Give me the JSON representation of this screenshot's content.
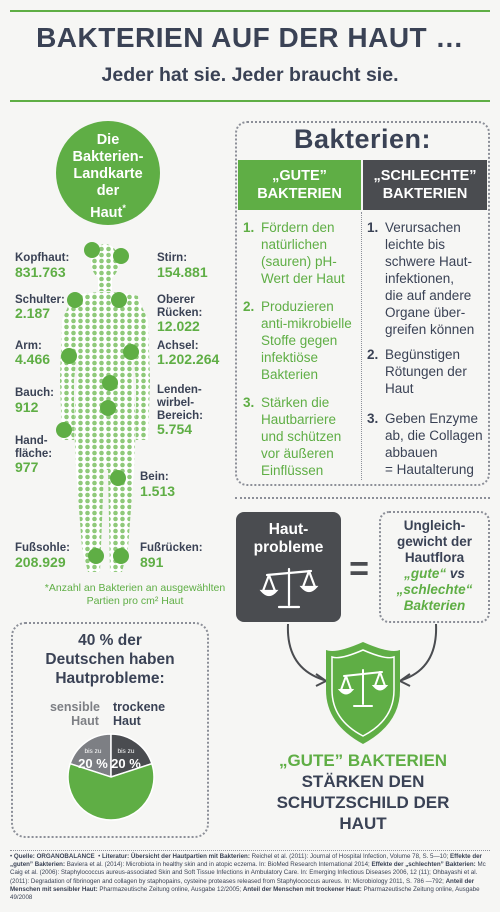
{
  "header": {
    "title": "BAKTERIEN AUF DER HAUT …",
    "subtitle": "Jeder hat sie. Jeder braucht sie."
  },
  "map": {
    "circle_lines": [
      "Die",
      "Bakterien-",
      "Landkarte",
      "der",
      "Haut"
    ],
    "asterisk": "*",
    "footnote": "*Anzahl an Bakterien an ausgewählten Partien pro cm² Haut",
    "left": [
      {
        "label": "Kopfhaut:",
        "value": "831.763"
      },
      {
        "label": "Schulter:",
        "value": "2.187"
      },
      {
        "label": "Arm:",
        "value": "4.466"
      },
      {
        "label": "Bauch:",
        "value": "912"
      },
      {
        "label": "Hand-\nfläche:",
        "value": "977"
      },
      {
        "label": "Fußsohle:",
        "value": "208.929"
      }
    ],
    "right": [
      {
        "label": "Stirn:",
        "value": "154.881"
      },
      {
        "label": "Oberer\nRücken:",
        "value": "12.022"
      },
      {
        "label": "Achsel:",
        "value": "1.202.264"
      },
      {
        "label": "Lenden-\nwirbel-\nBereich:",
        "value": "5.754"
      },
      {
        "label": "Bein:",
        "value": "1.513"
      },
      {
        "label": "Fußrücken:",
        "value": "891"
      }
    ]
  },
  "bacteria": {
    "title": "Bakterien:",
    "good_header": [
      "„GUTE”",
      "BAKTERIEN"
    ],
    "bad_header": [
      "„SCHLECHTE”",
      "BAKTERIEN"
    ],
    "good": [
      {
        "num": "1.",
        "lines": [
          "Fördern den",
          "natürlichen",
          "(sauren) pH-",
          "Wert der Haut"
        ]
      },
      {
        "num": "2.",
        "lines": [
          "Produzieren",
          "anti-mikrobielle",
          "Stoffe gegen",
          "infektiöse",
          "Bakterien"
        ]
      },
      {
        "num": "3.",
        "lines": [
          "Stärken die",
          "Hautbarriere",
          "und schützen",
          "vor äußeren",
          "Einflüssen"
        ]
      }
    ],
    "bad": [
      {
        "num": "1.",
        "lines": [
          "Verursachen",
          "leichte bis",
          "schwere Haut-",
          "infektionen,",
          "die auf andere",
          "Organe über-",
          "greifen können"
        ]
      },
      {
        "num": "2.",
        "lines": [
          "Begünstigen",
          "Rötungen der",
          "Haut"
        ]
      },
      {
        "num": "3.",
        "lines": [
          "Geben Enzyme",
          "ab, die Collagen",
          "abbauen",
          "= Hautalterung"
        ]
      }
    ]
  },
  "problem": {
    "box_lines": [
      "Haut-",
      "probleme"
    ],
    "equals": "=",
    "imbalance_lines": [
      "Ungleich-",
      "gewicht der",
      "Hautflora"
    ],
    "imbalance_good": "„gute“",
    "imbalance_vs": "vs",
    "imbalance_bad1": "„schlechte“",
    "imbalance_bad2": "Bakterien"
  },
  "stat": {
    "lines": [
      "40 % der",
      "Deutschen haben",
      "Hautprobleme:"
    ],
    "sensible": [
      "sensible",
      "Haut"
    ],
    "trocken": [
      "trockene",
      "Haut"
    ],
    "slice_left_small": "bis zu",
    "slice_left_big": "20 %",
    "slice_right_small": "bis zu",
    "slice_right_big": "20 %",
    "chart_data": {
      "type": "pie",
      "categories": [
        "sensible Haut",
        "trockene Haut",
        "Rest"
      ],
      "values": [
        20,
        20,
        60
      ]
    }
  },
  "result": {
    "line1": "„GUTE” BAKTERIEN",
    "line2": "STÄRKEN DEN",
    "line3": "SCHUTZSCHILD DER",
    "line4": "HAUT"
  },
  "sources": {
    "q_label": "Quelle: ORGANOBALANCE",
    "l_label": "Literatur:",
    "l1b": "Übersicht der Hautpartien mit Bakterien:",
    "l1": "Reichel et al. (2011): Journal of Hospital Infection, Volume 78, S. 5—10;",
    "l2b": "Effekte der „guten” Bakterien:",
    "l2": "Baviera et al. (2014): Microbiota in healthy skin and in atopic eczema. In: BioMed Research International 2014;",
    "l3b": "Effekte der „schlechten” Bakterien:",
    "l3": "Mc Caig et al. (2006): Staphylococcus aureus-associated Skin and Soft Tissue Infections in Ambulatory Care. In: Emerging Infectious Diseases 2006, 12 (11); Ohbayashi et al. (2011): Degradation of fibrinogen and collagen by staphopains, cysteine proteases released from Staphylococcus aureus. In: Microbiology 2011, S. 786 —792;",
    "l4b": "Anteil der Menschen mit sensibler Haut:",
    "l4": "Pharmazeutische Zeitung online, Ausgabe 12/2005;",
    "l5b": "Anteil der Menschen mit trockener Haut:",
    "l5": "Pharmazeutische Zeitung online, Ausgabe 49/2008"
  },
  "colors": {
    "green": "#5fae45",
    "dark": "#4a4c50",
    "navy": "#3a4255"
  }
}
